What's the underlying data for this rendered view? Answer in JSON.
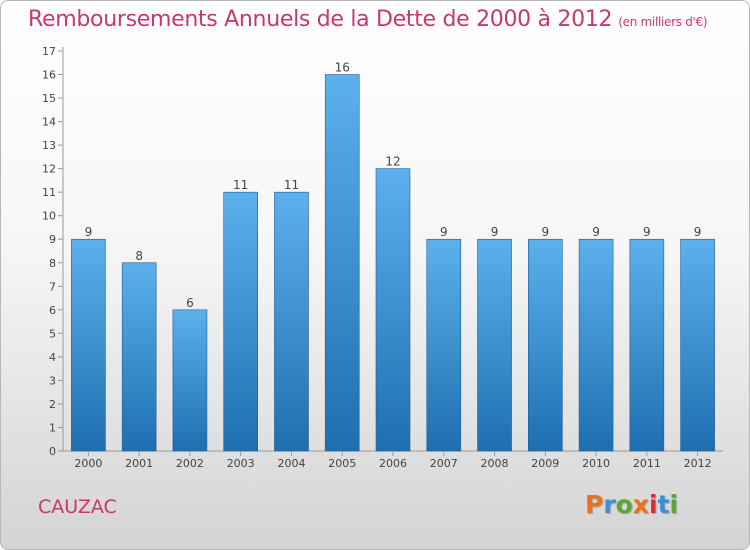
{
  "title": "Remboursements Annuels de la Dette de 2000 à 2012",
  "subtitle": "(en milliers d'€)",
  "commune": "CAUZAC",
  "logo": {
    "letters": [
      "P",
      "r",
      "o",
      "x",
      "i",
      "t",
      "i"
    ],
    "colors": [
      "#e8731a",
      "#3b8fd6",
      "#5aa832",
      "#e8731a",
      "#d62d2d",
      "#3b8fd6",
      "#5aa832"
    ]
  },
  "colors": {
    "title": "#c8386e",
    "bar_top": "#5cb0ec",
    "bar_bottom": "#1f6fb0"
  },
  "chart_data": {
    "type": "bar",
    "categories": [
      "2000",
      "2001",
      "2002",
      "2003",
      "2004",
      "2005",
      "2006",
      "2007",
      "2008",
      "2009",
      "2010",
      "2011",
      "2012"
    ],
    "values": [
      9,
      8,
      6,
      11,
      11,
      16,
      12,
      9,
      9,
      9,
      9,
      9,
      9
    ],
    "ylim": [
      0,
      17
    ],
    "yticks": [
      0,
      1,
      2,
      3,
      4,
      5,
      6,
      7,
      8,
      9,
      10,
      11,
      12,
      13,
      14,
      15,
      16,
      17
    ],
    "grid": false
  }
}
